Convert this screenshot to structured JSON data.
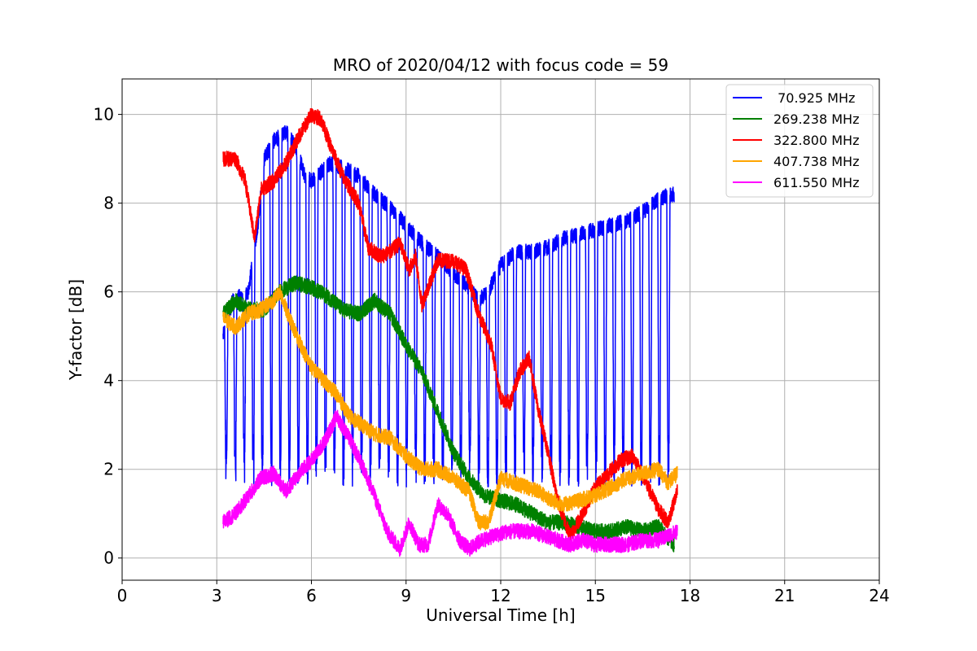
{
  "chart_data": {
    "type": "line",
    "title": "MRO of 2020/04/12 with focus code = 59",
    "xlabel": "Universal Time [h]",
    "ylabel": "Y-factor [dB]",
    "xlim": [
      0,
      24
    ],
    "ylim": [
      -0.5,
      10.8
    ],
    "xticks": [
      0,
      3,
      6,
      9,
      12,
      15,
      18,
      21,
      24
    ],
    "yticks": [
      0,
      2,
      4,
      6,
      8,
      10
    ],
    "grid": true,
    "legend_position": "top-right",
    "series": [
      {
        "name": " 70.925 MHz",
        "color": "#0000ff",
        "points": [
          [
            3.2,
            5.0
          ],
          [
            3.5,
            5.8
          ],
          [
            4.0,
            6.0
          ],
          [
            4.3,
            7.5
          ],
          [
            4.5,
            9.0
          ],
          [
            4.8,
            9.4
          ],
          [
            5.2,
            9.6
          ],
          [
            5.5,
            9.3
          ],
          [
            5.8,
            8.6
          ],
          [
            6.0,
            8.5
          ],
          [
            6.3,
            8.7
          ],
          [
            6.6,
            8.9
          ],
          [
            7.0,
            8.8
          ],
          [
            7.5,
            8.6
          ],
          [
            8.0,
            8.2
          ],
          [
            8.5,
            7.9
          ],
          [
            9.0,
            7.5
          ],
          [
            9.5,
            7.1
          ],
          [
            10.0,
            6.8
          ],
          [
            10.5,
            6.4
          ],
          [
            11.0,
            6.1
          ],
          [
            11.3,
            5.8
          ],
          [
            11.6,
            6.0
          ],
          [
            12.0,
            6.6
          ],
          [
            12.5,
            6.9
          ],
          [
            13.0,
            6.9
          ],
          [
            13.5,
            7.0
          ],
          [
            14.0,
            7.2
          ],
          [
            14.5,
            7.3
          ],
          [
            15.0,
            7.4
          ],
          [
            15.5,
            7.5
          ],
          [
            16.0,
            7.6
          ],
          [
            16.5,
            7.8
          ],
          [
            17.0,
            8.1
          ],
          [
            17.5,
            8.2
          ]
        ],
        "dip_spacing_h": 0.286,
        "dip_min": 1.6,
        "dip_start": 3.3,
        "dip_end": 17.5
      },
      {
        "name": "269.238 MHz",
        "color": "#008000",
        "points": [
          [
            3.2,
            5.5
          ],
          [
            3.6,
            5.8
          ],
          [
            4.0,
            5.6
          ],
          [
            4.5,
            5.6
          ],
          [
            5.0,
            6.0
          ],
          [
            5.5,
            6.2
          ],
          [
            6.0,
            6.1
          ],
          [
            6.5,
            5.9
          ],
          [
            7.0,
            5.6
          ],
          [
            7.5,
            5.5
          ],
          [
            8.0,
            5.8
          ],
          [
            8.5,
            5.5
          ],
          [
            9.0,
            4.8
          ],
          [
            9.5,
            4.2
          ],
          [
            10.0,
            3.3
          ],
          [
            10.5,
            2.4
          ],
          [
            11.0,
            1.8
          ],
          [
            11.5,
            1.4
          ],
          [
            12.0,
            1.3
          ],
          [
            12.5,
            1.2
          ],
          [
            13.0,
            1.0
          ],
          [
            13.5,
            0.8
          ],
          [
            14.0,
            0.8
          ],
          [
            14.5,
            0.7
          ],
          [
            15.0,
            0.6
          ],
          [
            15.5,
            0.6
          ],
          [
            16.0,
            0.7
          ],
          [
            16.5,
            0.6
          ],
          [
            17.0,
            0.7
          ],
          [
            17.5,
            0.3
          ]
        ]
      },
      {
        "name": "322.800 MHz",
        "color": "#ff0000",
        "points": [
          [
            3.2,
            9.0
          ],
          [
            3.6,
            9.0
          ],
          [
            3.9,
            8.5
          ],
          [
            4.2,
            7.2
          ],
          [
            4.4,
            8.3
          ],
          [
            4.8,
            8.5
          ],
          [
            5.2,
            8.9
          ],
          [
            5.6,
            9.5
          ],
          [
            6.0,
            10.0
          ],
          [
            6.3,
            9.9
          ],
          [
            6.6,
            9.3
          ],
          [
            7.0,
            8.6
          ],
          [
            7.5,
            8.0
          ],
          [
            7.8,
            7.0
          ],
          [
            8.2,
            6.8
          ],
          [
            8.5,
            6.9
          ],
          [
            8.8,
            7.1
          ],
          [
            9.1,
            6.5
          ],
          [
            9.3,
            6.8
          ],
          [
            9.5,
            5.7
          ],
          [
            10.0,
            6.7
          ],
          [
            10.5,
            6.7
          ],
          [
            10.9,
            6.5
          ],
          [
            11.3,
            5.5
          ],
          [
            11.7,
            4.8
          ],
          [
            12.0,
            3.6
          ],
          [
            12.3,
            3.5
          ],
          [
            12.6,
            4.2
          ],
          [
            12.9,
            4.5
          ],
          [
            13.2,
            3.3
          ],
          [
            13.5,
            2.4
          ],
          [
            13.8,
            1.3
          ],
          [
            14.2,
            0.5
          ],
          [
            14.6,
            1.0
          ],
          [
            15.0,
            1.6
          ],
          [
            15.4,
            1.9
          ],
          [
            15.8,
            2.2
          ],
          [
            16.2,
            2.3
          ],
          [
            16.6,
            1.7
          ],
          [
            17.0,
            1.1
          ],
          [
            17.3,
            0.8
          ],
          [
            17.6,
            1.5
          ]
        ]
      },
      {
        "name": "407.738 MHz",
        "color": "#ffa500",
        "points": [
          [
            3.2,
            5.4
          ],
          [
            3.6,
            5.2
          ],
          [
            4.0,
            5.5
          ],
          [
            4.4,
            5.6
          ],
          [
            4.8,
            5.8
          ],
          [
            5.0,
            6.0
          ],
          [
            5.3,
            5.4
          ],
          [
            5.6,
            4.9
          ],
          [
            6.0,
            4.3
          ],
          [
            6.4,
            4.0
          ],
          [
            6.8,
            3.7
          ],
          [
            7.2,
            3.2
          ],
          [
            7.6,
            3.0
          ],
          [
            8.0,
            2.8
          ],
          [
            8.5,
            2.7
          ],
          [
            9.0,
            2.3
          ],
          [
            9.5,
            2.0
          ],
          [
            10.0,
            2.0
          ],
          [
            10.5,
            1.8
          ],
          [
            11.0,
            1.5
          ],
          [
            11.3,
            0.8
          ],
          [
            11.6,
            0.8
          ],
          [
            12.0,
            1.8
          ],
          [
            12.4,
            1.7
          ],
          [
            12.8,
            1.6
          ],
          [
            13.2,
            1.5
          ],
          [
            13.6,
            1.3
          ],
          [
            14.0,
            1.2
          ],
          [
            14.5,
            1.3
          ],
          [
            15.0,
            1.4
          ],
          [
            15.5,
            1.6
          ],
          [
            16.0,
            1.8
          ],
          [
            16.5,
            1.9
          ],
          [
            17.0,
            2.0
          ],
          [
            17.3,
            1.7
          ],
          [
            17.6,
            1.9
          ]
        ]
      },
      {
        "name": "611.550 MHz",
        "color": "#ff00ff",
        "points": [
          [
            3.2,
            0.8
          ],
          [
            3.6,
            1.0
          ],
          [
            4.0,
            1.4
          ],
          [
            4.4,
            1.8
          ],
          [
            4.8,
            1.9
          ],
          [
            5.2,
            1.5
          ],
          [
            5.6,
            1.9
          ],
          [
            6.0,
            2.2
          ],
          [
            6.4,
            2.6
          ],
          [
            6.8,
            3.2
          ],
          [
            7.2,
            2.7
          ],
          [
            7.6,
            2.1
          ],
          [
            8.0,
            1.4
          ],
          [
            8.4,
            0.6
          ],
          [
            8.8,
            0.2
          ],
          [
            9.1,
            0.8
          ],
          [
            9.4,
            0.3
          ],
          [
            9.7,
            0.3
          ],
          [
            10.0,
            1.2
          ],
          [
            10.3,
            1.0
          ],
          [
            10.7,
            0.4
          ],
          [
            11.0,
            0.2
          ],
          [
            11.4,
            0.4
          ],
          [
            11.8,
            0.5
          ],
          [
            12.2,
            0.6
          ],
          [
            12.6,
            0.6
          ],
          [
            13.0,
            0.6
          ],
          [
            13.4,
            0.5
          ],
          [
            13.8,
            0.4
          ],
          [
            14.2,
            0.3
          ],
          [
            14.6,
            0.4
          ],
          [
            15.0,
            0.3
          ],
          [
            15.5,
            0.3
          ],
          [
            16.0,
            0.3
          ],
          [
            16.5,
            0.4
          ],
          [
            17.0,
            0.4
          ],
          [
            17.6,
            0.6
          ]
        ]
      }
    ]
  }
}
